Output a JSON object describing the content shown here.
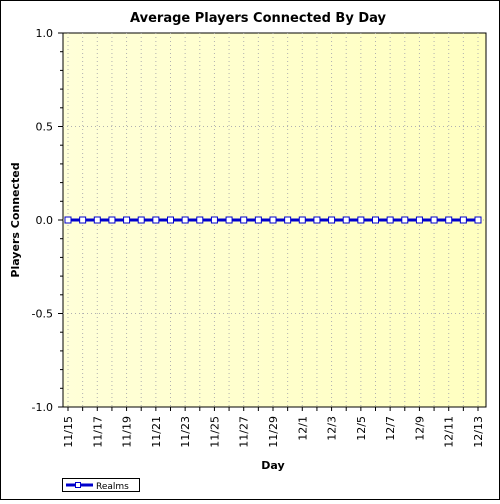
{
  "chart_data": {
    "type": "line",
    "title": "Average Players Connected By Day",
    "xlabel": "Day",
    "ylabel": "Players Connected",
    "categories": [
      "11/15",
      "11/16",
      "11/17",
      "11/18",
      "11/19",
      "11/20",
      "11/21",
      "11/22",
      "11/23",
      "11/24",
      "11/25",
      "11/26",
      "11/27",
      "11/28",
      "11/29",
      "11/30",
      "12/1",
      "12/2",
      "12/3",
      "12/4",
      "12/5",
      "12/6",
      "12/7",
      "12/8",
      "12/9",
      "12/10",
      "12/11",
      "12/12",
      "12/13"
    ],
    "tick_labels": [
      "11/15",
      "11/17",
      "11/19",
      "11/21",
      "11/23",
      "11/25",
      "11/27",
      "11/29",
      "12/1",
      "12/3",
      "12/5",
      "12/7",
      "12/9",
      "12/11",
      "12/13"
    ],
    "y_ticks": [
      1.0,
      0.5,
      0.0,
      -0.5,
      -1.0
    ],
    "y_tick_labels": [
      "1.0",
      "0.5",
      "0.0",
      "-0.5",
      "-1.0"
    ],
    "ylim": [
      -1.0,
      1.0
    ],
    "grid": true,
    "legend_position": "bottom-left",
    "series": [
      {
        "name": "Realms",
        "color": "#0000cc",
        "marker": "square",
        "values": [
          0,
          0,
          0,
          0,
          0,
          0,
          0,
          0,
          0,
          0,
          0,
          0,
          0,
          0,
          0,
          0,
          0,
          0,
          0,
          0,
          0,
          0,
          0,
          0,
          0,
          0,
          0,
          0,
          0
        ]
      }
    ],
    "colors": {
      "plot_bg_left": "#ffffd8",
      "plot_bg_right": "#ffffc0",
      "grid": "#b0b0b0",
      "line": "#0000cc"
    }
  }
}
